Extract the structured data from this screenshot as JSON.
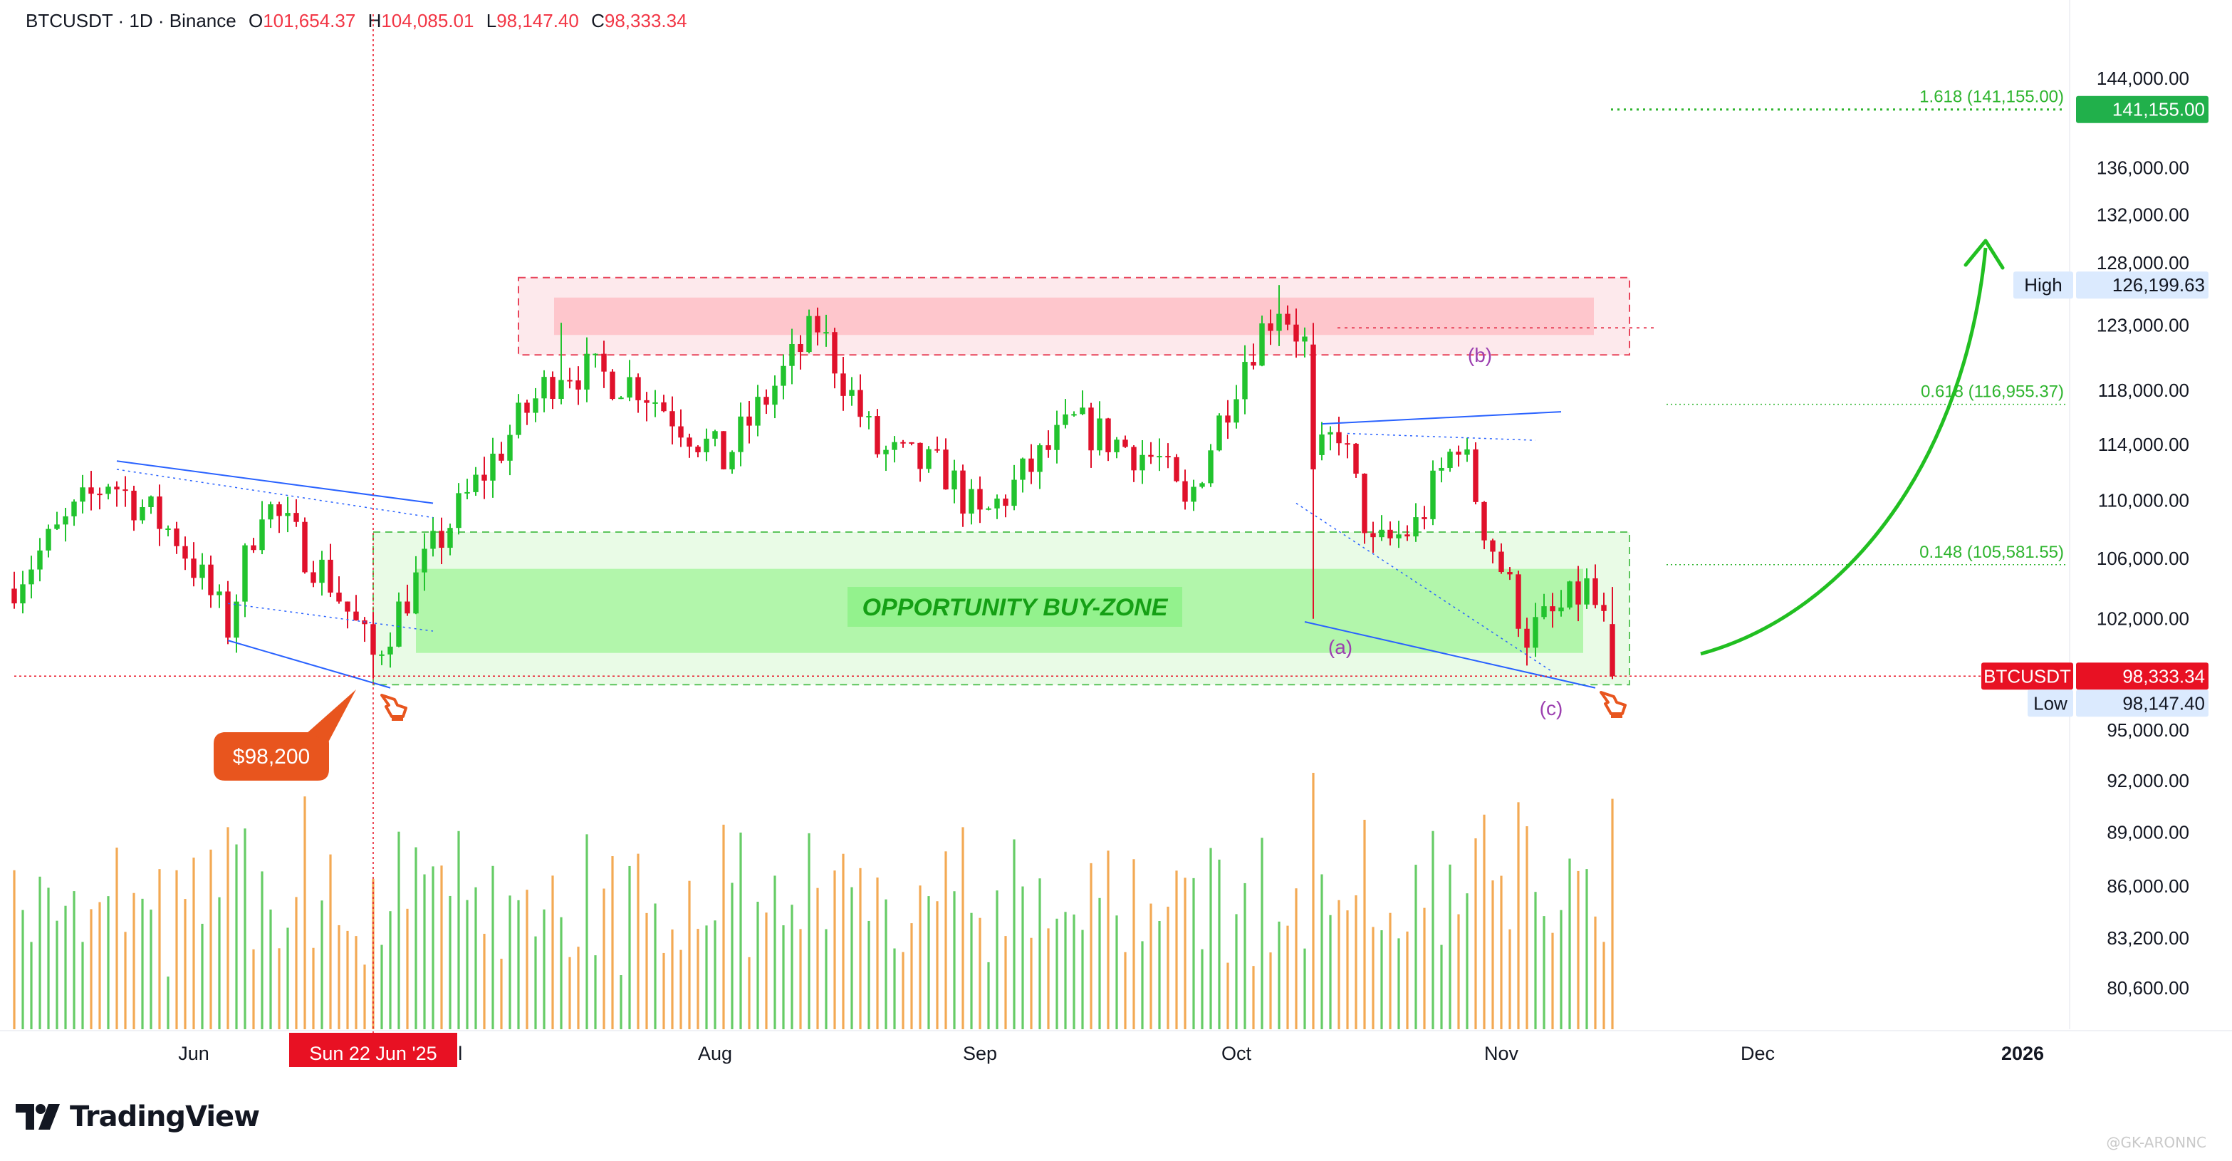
{
  "header": {
    "symbol_line": "BTCUSDT · 1D · Binance",
    "open_label": "O",
    "open": "101,654.37",
    "high_label": "H",
    "high": "104,085.01",
    "low_label": "L",
    "low": "98,147.40",
    "close_label": "C",
    "close": "98,333.34"
  },
  "brand": {
    "name": "TradingView"
  },
  "watermark": "@GK-ARONNC",
  "colors": {
    "up": "#22c32e",
    "down": "#e0112b",
    "vol_up": "#66cc66",
    "vol_down": "#f3a954",
    "zone_green": "#a8f5a0",
    "zone_red": "#ffb3bb",
    "fib": "#2fb52f",
    "channel": "#2962ff",
    "wave": "#9c3fb0",
    "price_tag": "#e81123",
    "callout": "#e8551e"
  },
  "chart_data": {
    "type": "candlestick",
    "symbol": "BTCUSDT",
    "timeframe": "1D",
    "exchange": "Binance",
    "x_range": [
      "2025-05-11",
      "2026-01-06"
    ],
    "y_axis": {
      "scale": "log",
      "range": [
        78500,
        150000
      ],
      "ticks": [
        "144,000.00",
        "136,000.00",
        "132,000.00",
        "128,000.00",
        "123,000.00",
        "118,000.00",
        "114,000.00",
        "110,000.00",
        "106,000.00",
        "102,000.00",
        "95,000.00",
        "92,000.00",
        "89,000.00",
        "86,000.00",
        "83,200.00",
        "80,600.00"
      ],
      "tick_values": [
        144000,
        136000,
        132000,
        128000,
        123000,
        118000,
        114000,
        110000,
        106000,
        102000,
        95000,
        92000,
        89000,
        86000,
        83200,
        80600
      ]
    },
    "x_axis": {
      "labels": [
        "Jun",
        "Jul",
        "Aug",
        "Sep",
        "Oct",
        "Nov",
        "Dec",
        "2026"
      ],
      "label_dates": [
        "2025-06-01",
        "2025-07-01",
        "2025-08-01",
        "2025-09-01",
        "2025-10-01",
        "2025-11-01",
        "2025-12-01",
        "2026-01-01"
      ],
      "cursor_label": "Sun 22 Jun '25",
      "cursor_date": "2025-06-22"
    },
    "anchors": [
      {
        "date": "2025-05-11",
        "close": 104500
      },
      {
        "date": "2025-05-22",
        "close": 111500
      },
      {
        "date": "2025-05-30",
        "close": 107500
      },
      {
        "date": "2025-06-05",
        "close": 101500
      },
      {
        "date": "2025-06-09",
        "close": 110000
      },
      {
        "date": "2025-06-17",
        "close": 104500
      },
      {
        "date": "2025-06-22",
        "close": 99500
      },
      {
        "date": "2025-06-30",
        "close": 107500
      },
      {
        "date": "2025-07-10",
        "close": 116500
      },
      {
        "date": "2025-07-14",
        "close": 119800
      },
      {
        "date": "2025-07-23",
        "close": 118500
      },
      {
        "date": "2025-08-02",
        "close": 112800
      },
      {
        "date": "2025-08-13",
        "close": 123000
      },
      {
        "date": "2025-08-20",
        "close": 113500
      },
      {
        "date": "2025-08-28",
        "close": 112000
      },
      {
        "date": "2025-09-01",
        "close": 108500
      },
      {
        "date": "2025-09-12",
        "close": 115500
      },
      {
        "date": "2025-09-22",
        "close": 112800
      },
      {
        "date": "2025-09-25",
        "close": 109200
      },
      {
        "date": "2025-10-02",
        "close": 120500
      },
      {
        "date": "2025-10-06",
        "close": 124800
      },
      {
        "date": "2025-10-09",
        "close": 121500
      },
      {
        "date": "2025-10-10",
        "close": 112200
      },
      {
        "date": "2025-10-13",
        "close": 115200
      },
      {
        "date": "2025-10-17",
        "close": 106500
      },
      {
        "date": "2025-10-22",
        "close": 108200
      },
      {
        "date": "2025-10-27",
        "close": 114500
      },
      {
        "date": "2025-10-30",
        "close": 108300
      },
      {
        "date": "2025-11-04",
        "close": 101000
      },
      {
        "date": "2025-11-08",
        "close": 102500
      },
      {
        "date": "2025-11-11",
        "close": 104000
      },
      {
        "date": "2025-11-13",
        "close": 101600
      },
      {
        "date": "2025-11-14",
        "close": 98333.34
      }
    ],
    "last_bar": {
      "date": "2025-11-14",
      "open": 101654.37,
      "high": 104085.01,
      "low": 98147.4,
      "close": 98333.34
    },
    "high_marker": {
      "label": "High",
      "value": 126199.63,
      "text": "126,199.63"
    },
    "low_marker": {
      "label": "Low",
      "value": 98147.4,
      "text": "98,147.40"
    },
    "last_price": {
      "label": "BTCUSDT",
      "value": 98333.34,
      "text": "98,333.34"
    },
    "target_tag": {
      "value": 141155,
      "text": "141,155.00"
    },
    "fib_levels": [
      {
        "label": "1.618 (141,155.00)",
        "value": 141155
      },
      {
        "label": "0.618 (116,955.37)",
        "value": 116955.37
      },
      {
        "label": "0.148 (105,581.55)",
        "value": 105581.55
      }
    ],
    "zones": [
      {
        "name": "resistance",
        "from_date": "2025-07-09",
        "to_date": "2025-11-16",
        "low": 120700,
        "high": 126800
      },
      {
        "name": "buy-zone",
        "from_date": "2025-06-22",
        "to_date": "2025-11-16",
        "low": 97800,
        "high": 107800
      }
    ],
    "annotations": {
      "buy_zone_label": "OPPORTUNITY BUY-ZONE",
      "wave_a": "(a)",
      "wave_b": "(b)",
      "wave_c": "(c)",
      "callout_price": "$98,200"
    },
    "volume_max": 1.0
  }
}
